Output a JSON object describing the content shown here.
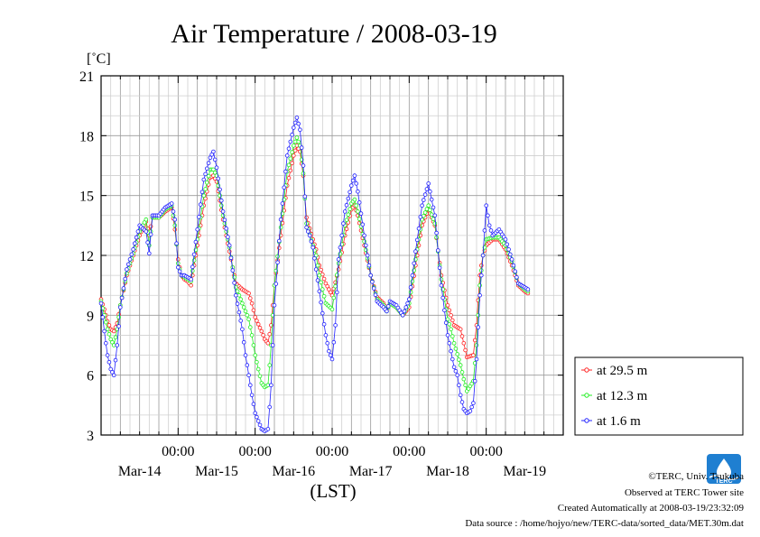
{
  "chart_data": {
    "type": "line",
    "title": "Air Temperature / 2008-03-19",
    "ylabel": "[˚C]",
    "xlabel": "(LST)",
    "ylim": [
      3,
      21
    ],
    "yticks": [
      3,
      6,
      9,
      12,
      15,
      18,
      21
    ],
    "xlim": [
      0,
      144
    ],
    "x_unit": "hours from Mar-14 00:00 LST",
    "x_major_labels": [
      {
        "x": 24,
        "time": "00:00"
      },
      {
        "x": 48,
        "time": "00:00"
      },
      {
        "x": 72,
        "time": "00:00"
      },
      {
        "x": 96,
        "time": "00:00"
      },
      {
        "x": 120,
        "time": "00:00"
      }
    ],
    "x_day_labels": [
      {
        "x": 12,
        "date": "Mar-14"
      },
      {
        "x": 36,
        "date": "Mar-15"
      },
      {
        "x": 60,
        "date": "Mar-16"
      },
      {
        "x": 84,
        "date": "Mar-17"
      },
      {
        "x": 108,
        "date": "Mar-18"
      },
      {
        "x": 132,
        "date": "Mar-19"
      }
    ],
    "grid": true,
    "legend_position": "bottom-right, outside plot",
    "series": [
      {
        "name": "at 29.5 m",
        "color": "#ff2020",
        "points": [
          [
            0,
            9.8
          ],
          [
            1,
            9.3
          ],
          [
            2,
            8.7
          ],
          [
            3,
            8.3
          ],
          [
            4,
            8.2
          ],
          [
            5,
            8.6
          ],
          [
            6,
            9.5
          ],
          [
            8,
            11.0
          ],
          [
            10,
            12.0
          ],
          [
            12,
            13.0
          ],
          [
            14,
            13.7
          ],
          [
            15,
            13.0
          ],
          [
            16,
            13.9
          ],
          [
            18,
            13.9
          ],
          [
            20,
            14.2
          ],
          [
            22,
            14.4
          ],
          [
            23,
            13.3
          ],
          [
            24,
            11.8
          ],
          [
            25,
            11.0
          ],
          [
            26,
            10.8
          ],
          [
            27,
            10.7
          ],
          [
            28,
            10.5
          ],
          [
            30,
            12.5
          ],
          [
            32,
            14.5
          ],
          [
            34,
            15.9
          ],
          [
            35,
            16.0
          ],
          [
            36,
            15.7
          ],
          [
            38,
            13.8
          ],
          [
            40,
            12.2
          ],
          [
            42,
            10.6
          ],
          [
            44,
            10.3
          ],
          [
            46,
            10.1
          ],
          [
            47,
            9.6
          ],
          [
            48,
            8.9
          ],
          [
            50,
            8.2
          ],
          [
            51,
            7.8
          ],
          [
            52,
            7.6
          ],
          [
            53,
            8.5
          ],
          [
            54,
            10.5
          ],
          [
            56,
            13.0
          ],
          [
            58,
            15.5
          ],
          [
            60,
            17.0
          ],
          [
            61,
            17.5
          ],
          [
            62,
            17.2
          ],
          [
            63,
            16.0
          ],
          [
            64,
            13.9
          ],
          [
            66,
            12.8
          ],
          [
            67,
            12.3
          ],
          [
            68,
            11.5
          ],
          [
            70,
            10.6
          ],
          [
            72,
            10.0
          ],
          [
            74,
            11.3
          ],
          [
            76,
            13.0
          ],
          [
            78,
            14.3
          ],
          [
            79,
            14.5
          ],
          [
            80,
            14.0
          ],
          [
            82,
            12.5
          ],
          [
            84,
            11.0
          ],
          [
            86,
            9.9
          ],
          [
            88,
            9.6
          ],
          [
            89,
            9.3
          ],
          [
            90,
            9.6
          ],
          [
            92,
            9.4
          ],
          [
            94,
            9.0
          ],
          [
            96,
            9.4
          ],
          [
            98,
            11.5
          ],
          [
            100,
            13.5
          ],
          [
            102,
            14.3
          ],
          [
            104,
            13.5
          ],
          [
            106,
            11.0
          ],
          [
            108,
            9.5
          ],
          [
            109,
            9.0
          ],
          [
            110,
            8.5
          ],
          [
            112,
            8.3
          ],
          [
            113,
            7.6
          ],
          [
            114,
            6.9
          ],
          [
            116,
            7.0
          ],
          [
            117,
            8.5
          ],
          [
            118,
            11.0
          ],
          [
            119,
            12.0
          ],
          [
            120,
            12.5
          ],
          [
            122,
            12.8
          ],
          [
            124,
            12.8
          ],
          [
            126,
            12.3
          ],
          [
            128,
            11.5
          ],
          [
            130,
            10.5
          ],
          [
            132,
            10.2
          ],
          [
            133,
            10.1
          ]
        ]
      },
      {
        "name": "at 12.3 m",
        "color": "#20ee20",
        "points": [
          [
            0,
            9.7
          ],
          [
            1,
            9.0
          ],
          [
            2,
            8.3
          ],
          [
            3,
            7.8
          ],
          [
            4,
            7.5
          ],
          [
            5,
            8.3
          ],
          [
            6,
            9.5
          ],
          [
            8,
            11.1
          ],
          [
            10,
            12.1
          ],
          [
            12,
            13.2
          ],
          [
            14,
            13.8
          ],
          [
            15,
            12.5
          ],
          [
            16,
            13.9
          ],
          [
            18,
            13.9
          ],
          [
            20,
            14.3
          ],
          [
            22,
            14.5
          ],
          [
            23,
            13.5
          ],
          [
            24,
            11.6
          ],
          [
            25,
            11.0
          ],
          [
            26,
            10.9
          ],
          [
            27,
            10.8
          ],
          [
            28,
            10.7
          ],
          [
            30,
            12.8
          ],
          [
            32,
            15.0
          ],
          [
            34,
            16.3
          ],
          [
            35,
            16.3
          ],
          [
            36,
            16.0
          ],
          [
            38,
            14.0
          ],
          [
            40,
            12.4
          ],
          [
            42,
            10.4
          ],
          [
            44,
            9.6
          ],
          [
            46,
            8.8
          ],
          [
            47,
            8.0
          ],
          [
            48,
            7.0
          ],
          [
            50,
            5.6
          ],
          [
            51,
            5.4
          ],
          [
            52,
            5.5
          ],
          [
            53,
            7.5
          ],
          [
            54,
            10.5
          ],
          [
            56,
            13.4
          ],
          [
            58,
            16.2
          ],
          [
            60,
            17.5
          ],
          [
            61,
            17.9
          ],
          [
            62,
            17.5
          ],
          [
            63,
            16.1
          ],
          [
            64,
            13.6
          ],
          [
            66,
            12.5
          ],
          [
            67,
            12.0
          ],
          [
            68,
            11.0
          ],
          [
            70,
            9.6
          ],
          [
            72,
            9.3
          ],
          [
            74,
            11.6
          ],
          [
            76,
            13.5
          ],
          [
            78,
            14.6
          ],
          [
            79,
            14.8
          ],
          [
            80,
            14.2
          ],
          [
            82,
            12.7
          ],
          [
            84,
            11.0
          ],
          [
            86,
            9.8
          ],
          [
            88,
            9.5
          ],
          [
            89,
            9.2
          ],
          [
            90,
            9.6
          ],
          [
            92,
            9.4
          ],
          [
            94,
            9.0
          ],
          [
            96,
            9.6
          ],
          [
            98,
            11.8
          ],
          [
            100,
            13.8
          ],
          [
            102,
            14.5
          ],
          [
            104,
            13.6
          ],
          [
            106,
            10.8
          ],
          [
            108,
            8.8
          ],
          [
            109,
            8.3
          ],
          [
            110,
            7.6
          ],
          [
            112,
            6.5
          ],
          [
            113,
            5.8
          ],
          [
            114,
            5.2
          ],
          [
            116,
            5.7
          ],
          [
            117,
            7.5
          ],
          [
            118,
            10.5
          ],
          [
            119,
            12.0
          ],
          [
            120,
            12.8
          ],
          [
            122,
            12.9
          ],
          [
            124,
            12.9
          ],
          [
            126,
            12.5
          ],
          [
            128,
            11.7
          ],
          [
            130,
            10.6
          ],
          [
            132,
            10.3
          ],
          [
            133,
            10.2
          ]
        ]
      },
      {
        "name": "at 1.6 m",
        "color": "#2020ff",
        "points": [
          [
            0,
            9.6
          ],
          [
            1,
            8.2
          ],
          [
            2,
            7.0
          ],
          [
            3,
            6.3
          ],
          [
            4,
            6.0
          ],
          [
            5,
            7.5
          ],
          [
            6,
            9.4
          ],
          [
            8,
            11.3
          ],
          [
            10,
            12.3
          ],
          [
            12,
            13.5
          ],
          [
            14,
            13.2
          ],
          [
            15,
            12.1
          ],
          [
            16,
            14.0
          ],
          [
            18,
            14.0
          ],
          [
            20,
            14.4
          ],
          [
            22,
            14.6
          ],
          [
            23,
            13.8
          ],
          [
            24,
            11.4
          ],
          [
            25,
            11.0
          ],
          [
            26,
            11.0
          ],
          [
            27,
            10.9
          ],
          [
            28,
            10.8
          ],
          [
            30,
            13.3
          ],
          [
            32,
            15.8
          ],
          [
            34,
            16.9
          ],
          [
            35,
            17.2
          ],
          [
            36,
            16.4
          ],
          [
            38,
            14.2
          ],
          [
            40,
            12.5
          ],
          [
            42,
            10.0
          ],
          [
            44,
            8.3
          ],
          [
            45,
            7.0
          ],
          [
            46,
            6.0
          ],
          [
            47,
            5.0
          ],
          [
            48,
            4.1
          ],
          [
            49,
            3.7
          ],
          [
            50,
            3.3
          ],
          [
            51,
            3.2
          ],
          [
            52,
            3.3
          ],
          [
            53,
            5.5
          ],
          [
            54,
            9.5
          ],
          [
            56,
            13.8
          ],
          [
            58,
            17.0
          ],
          [
            60,
            18.4
          ],
          [
            61,
            18.9
          ],
          [
            62,
            18.3
          ],
          [
            63,
            16.5
          ],
          [
            64,
            13.4
          ],
          [
            65,
            13.0
          ],
          [
            66,
            12.4
          ],
          [
            68,
            10.2
          ],
          [
            70,
            8.0
          ],
          [
            71,
            7.2
          ],
          [
            72,
            6.8
          ],
          [
            73,
            8.5
          ],
          [
            74,
            11.8
          ],
          [
            76,
            14.2
          ],
          [
            78,
            15.5
          ],
          [
            79,
            16.0
          ],
          [
            80,
            15.2
          ],
          [
            82,
            13.0
          ],
          [
            84,
            11.0
          ],
          [
            86,
            9.7
          ],
          [
            88,
            9.4
          ],
          [
            89,
            9.2
          ],
          [
            90,
            9.7
          ],
          [
            92,
            9.5
          ],
          [
            94,
            9.0
          ],
          [
            96,
            9.8
          ],
          [
            98,
            12.2
          ],
          [
            100,
            14.5
          ],
          [
            102,
            15.6
          ],
          [
            104,
            14.0
          ],
          [
            106,
            10.5
          ],
          [
            108,
            8.0
          ],
          [
            109,
            7.2
          ],
          [
            110,
            6.4
          ],
          [
            111,
            6.0
          ],
          [
            112,
            5.0
          ],
          [
            113,
            4.3
          ],
          [
            114,
            4.1
          ],
          [
            115,
            4.2
          ],
          [
            116,
            4.6
          ],
          [
            117,
            6.8
          ],
          [
            118,
            10.0
          ],
          [
            119,
            12.0
          ],
          [
            120,
            14.5
          ],
          [
            121,
            13.5
          ],
          [
            122,
            13.0
          ],
          [
            124,
            13.3
          ],
          [
            126,
            12.8
          ],
          [
            128,
            11.8
          ],
          [
            130,
            10.6
          ],
          [
            132,
            10.4
          ],
          [
            133,
            10.3
          ]
        ]
      }
    ]
  },
  "footer": {
    "copyright": "©TERC, Univ. Tsukuba",
    "site": "Observed at TERC Tower site",
    "created": "Created Automatically at 2008-03-19/23:32:09",
    "source": "Data source : /home/hojyo/new/TERC-data/sorted_data/MET.30m.dat"
  },
  "logo": {
    "text": "TERC",
    "color": "#1f7fd1"
  }
}
